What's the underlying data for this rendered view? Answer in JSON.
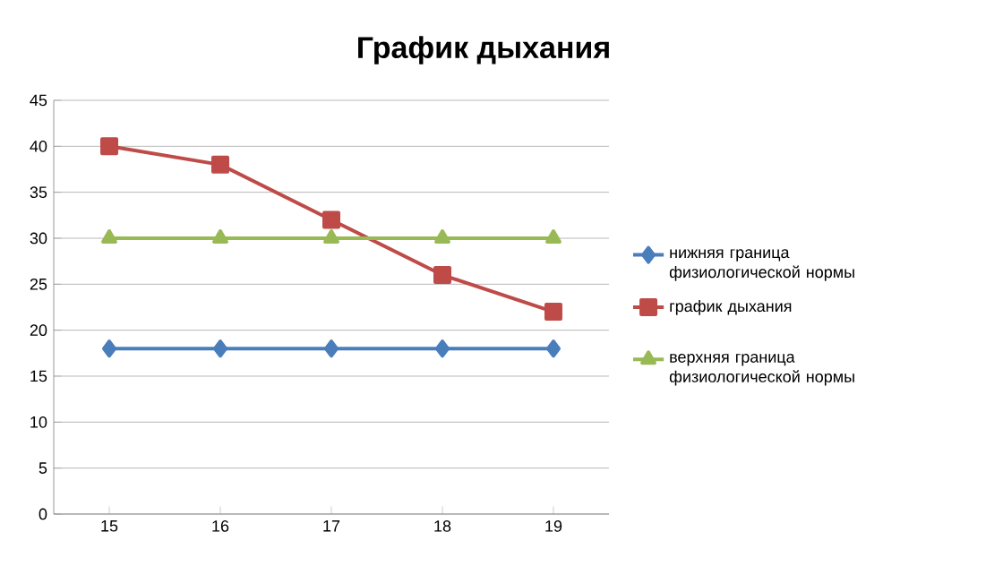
{
  "chart_data": {
    "type": "line",
    "title": "График дыхания",
    "categories": [
      "15",
      "16",
      "17",
      "18",
      "19"
    ],
    "series": [
      {
        "name": "нижняя граница физиологической нормы",
        "color": "#4a7ebb",
        "marker": "diamond",
        "values": [
          18,
          18,
          18,
          18,
          18
        ]
      },
      {
        "name": "график дыхания",
        "color": "#be4b48",
        "marker": "square",
        "values": [
          40,
          38,
          32,
          26,
          22
        ]
      },
      {
        "name": "верхняя граница физиологической нормы",
        "color": "#98b954",
        "marker": "triangle",
        "values": [
          30,
          30,
          30,
          30,
          30
        ]
      }
    ],
    "ylim": [
      0,
      45
    ],
    "yticks": [
      0,
      5,
      10,
      15,
      20,
      25,
      30,
      35,
      40,
      45
    ],
    "grid": "y",
    "legend": "right",
    "line_style": "solid"
  }
}
